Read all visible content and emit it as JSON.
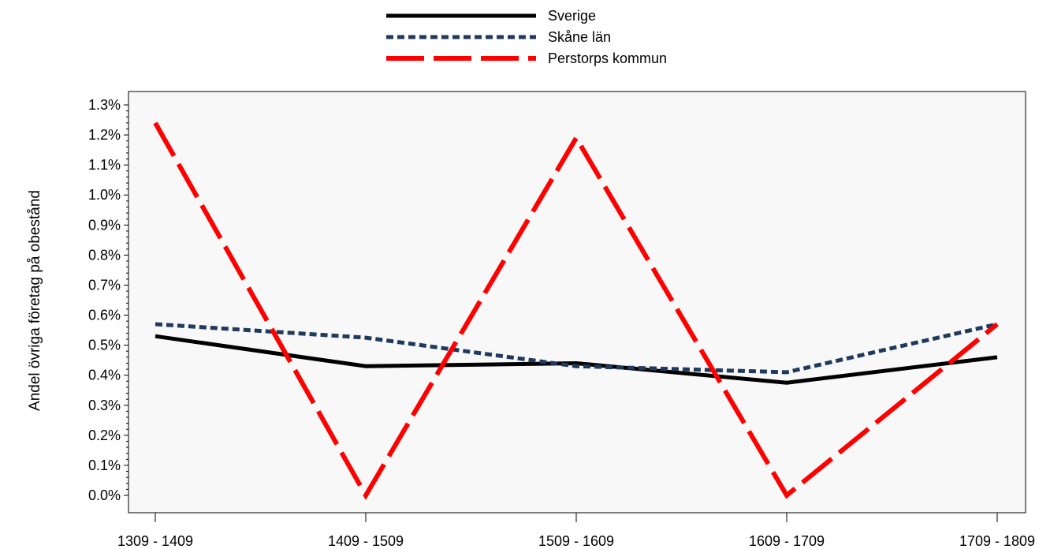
{
  "chart_data": {
    "type": "line",
    "title": "",
    "xlabel": "",
    "ylabel": "Andel övriga företag på obestånd",
    "categories": [
      "1309 - 1409",
      "1409 - 1509",
      "1509 - 1609",
      "1609 - 1709",
      "1709 - 1809"
    ],
    "ylim": [
      0.0,
      1.3
    ],
    "y_ticks": [
      0.0,
      0.1,
      0.2,
      0.3,
      0.4,
      0.5,
      0.6,
      0.7,
      0.8,
      0.9,
      1.0,
      1.1,
      1.2,
      1.3
    ],
    "y_tick_labels": [
      "0.0%",
      "0.1%",
      "0.2%",
      "0.3%",
      "0.4%",
      "0.5%",
      "0.6%",
      "0.7%",
      "0.8%",
      "0.9%",
      "1.0%",
      "1.1%",
      "1.2%",
      "1.3%"
    ],
    "y_unit": "%",
    "grid": false,
    "legend_position": "top-center",
    "plot_background": "#f8f8f8",
    "series": [
      {
        "name": "Sverige",
        "values": [
          0.53,
          0.43,
          0.44,
          0.375,
          0.46
        ],
        "color": "#000000",
        "style": "solid"
      },
      {
        "name": "Skåne län",
        "values": [
          0.57,
          0.525,
          0.43,
          0.41,
          0.57
        ],
        "color": "#1f3a5c",
        "style": "dotted"
      },
      {
        "name": "Perstorps kommun",
        "values": [
          1.24,
          0.0,
          1.19,
          0.0,
          0.57
        ],
        "color": "#ff0000",
        "style": "dashed"
      }
    ]
  }
}
